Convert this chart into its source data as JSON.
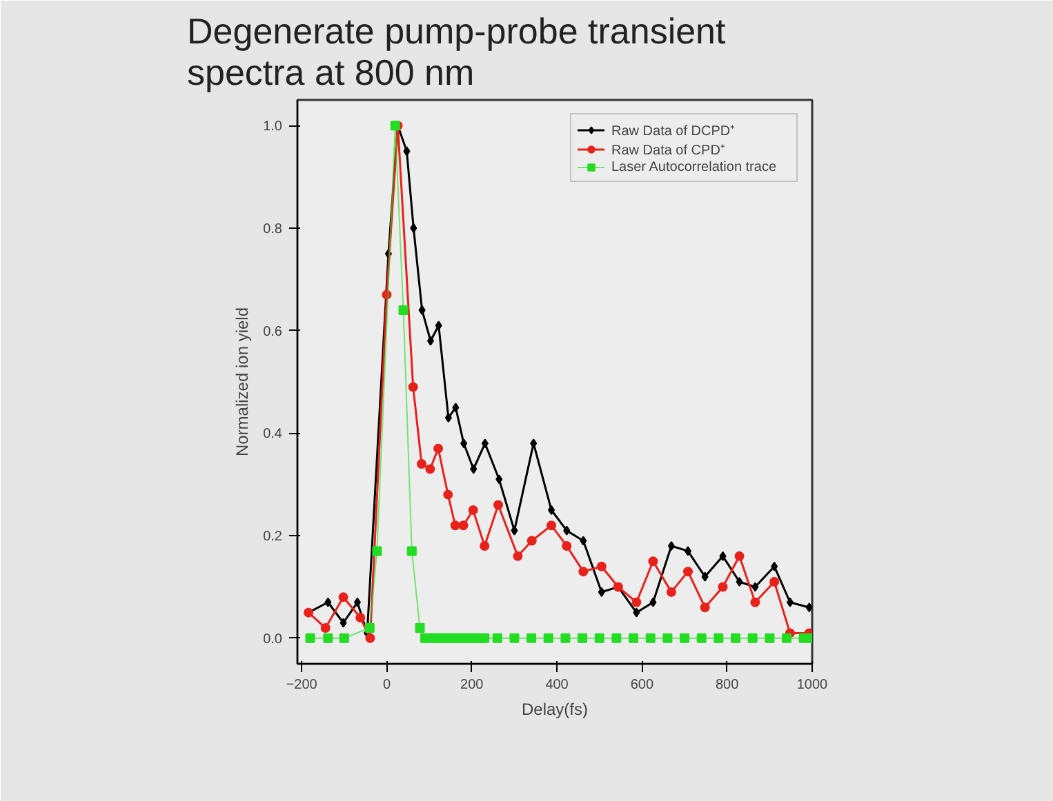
{
  "chart_data": {
    "type": "line",
    "title": "Degenerate pump-probe transient spectra at 800 nm",
    "xlabel": "Delay(fs)",
    "ylabel": "Normalized ion yield",
    "xlim": [
      -210,
      1000
    ],
    "ylim": [
      -0.05,
      1.05
    ],
    "xticks": [
      -200,
      0,
      200,
      400,
      600,
      800,
      1000
    ],
    "yticks": [
      {
        "value": 0,
        "label": "0.0"
      },
      {
        "value": 0.2,
        "label": "0.2"
      },
      {
        "value": 0.4,
        "label": "0.4"
      },
      {
        "value": 0.6,
        "label": "0.6"
      },
      {
        "value": 0.8,
        "label": "0.8"
      },
      {
        "value": 1,
        "label": "1.0"
      }
    ],
    "grid": false,
    "legend": "top right",
    "series": [
      {
        "name": "Raw Data of DCPD⁺",
        "color": "#000000",
        "marker": "diamond",
        "line_style": "solid",
        "x": [
          -184,
          -138,
          -102,
          -69,
          -46,
          4,
          26,
          47,
          63,
          83,
          103,
          122,
          145,
          162,
          181,
          204,
          231,
          264,
          300,
          345,
          387,
          423,
          462,
          505,
          544,
          587,
          626,
          669,
          708,
          748,
          790,
          829,
          866,
          911,
          948,
          993
        ],
        "values": [
          0.05,
          0.07,
          0.03,
          0.07,
          0.01,
          0.75,
          1.0,
          0.95,
          0.8,
          0.64,
          0.58,
          0.61,
          0.43,
          0.45,
          0.38,
          0.33,
          0.38,
          0.31,
          0.21,
          0.38,
          0.25,
          0.21,
          0.19,
          0.09,
          0.1,
          0.05,
          0.07,
          0.18,
          0.17,
          0.12,
          0.16,
          0.11,
          0.1,
          0.14,
          0.07,
          0.06
        ]
      },
      {
        "name": "Raw Data of CPD⁺",
        "color": "#e8211b",
        "marker": "circle",
        "line_style": "solid",
        "x": [
          -184,
          -144,
          -102,
          -62,
          -39,
          0,
          26,
          62,
          82,
          102,
          121,
          144,
          161,
          180,
          203,
          230,
          262,
          308,
          341,
          387,
          423,
          462,
          505,
          544,
          587,
          626,
          669,
          708,
          748,
          790,
          829,
          866,
          911,
          948,
          993
        ],
        "values": [
          0.05,
          0.02,
          0.08,
          0.04,
          0.0,
          0.67,
          1.0,
          0.49,
          0.34,
          0.33,
          0.37,
          0.28,
          0.22,
          0.22,
          0.25,
          0.18,
          0.26,
          0.16,
          0.19,
          0.22,
          0.18,
          0.13,
          0.14,
          0.1,
          0.07,
          0.15,
          0.09,
          0.13,
          0.06,
          0.1,
          0.16,
          0.07,
          0.11,
          0.01,
          0.01
        ]
      },
      {
        "name": "Laser Autocorrelation trace",
        "color": "#22dd22",
        "marker": "square",
        "line_style": "solid",
        "x": [
          -180,
          -138,
          -100,
          -40,
          -23,
          20,
          39,
          59,
          78,
          90,
          100,
          110,
          120,
          130,
          140,
          150,
          160,
          170,
          180,
          190,
          200,
          210,
          220,
          230,
          260,
          300,
          340,
          380,
          420,
          460,
          500,
          540,
          580,
          620,
          660,
          700,
          740,
          780,
          820,
          860,
          900,
          940,
          980,
          1000
        ],
        "values": [
          0,
          0,
          0,
          0.02,
          0.17,
          1.0,
          0.64,
          0.17,
          0.02,
          0,
          0,
          0,
          0,
          0,
          0,
          0,
          0,
          0,
          0,
          0,
          0,
          0,
          0,
          0,
          0,
          0,
          0,
          0,
          0,
          0,
          0,
          0,
          0,
          0,
          0,
          0,
          0,
          0,
          0,
          0,
          0,
          0,
          0,
          0
        ]
      }
    ]
  }
}
